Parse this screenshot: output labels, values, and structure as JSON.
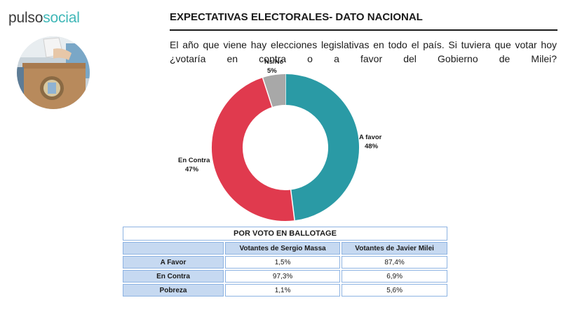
{
  "brand": {
    "part1": "pulso",
    "part2": "social"
  },
  "header": {
    "title": "EXPECTATIVAS ELECTORALES- DATO NACIONAL",
    "question": "El año que viene hay elecciones legislativas en todo el país. Si tuviera que votar hoy ¿votaría en contra o a favor del Gobierno de Milei?"
  },
  "chart_data": {
    "type": "pie",
    "donut": true,
    "categories": [
      "A favor",
      "En Contra",
      "Ns/Nc"
    ],
    "values": [
      48,
      47,
      5
    ],
    "value_labels": [
      "48%",
      "47%",
      "5%"
    ],
    "colors": [
      "#2a9aa5",
      "#e03a4e",
      "#a8a8a8"
    ]
  },
  "table": {
    "title": "POR VOTO EN BALLOTAGE",
    "columns": [
      "Votantes de Sergio Massa",
      "Votantes de Javier Milei"
    ],
    "rows": [
      {
        "label": "A Favor",
        "values": [
          "1,5%",
          "87,4%"
        ]
      },
      {
        "label": "En Contra",
        "values": [
          "97,3%",
          "6,9%"
        ]
      },
      {
        "label": "Pobreza",
        "values": [
          "1,1%",
          "5,6%"
        ]
      }
    ]
  }
}
